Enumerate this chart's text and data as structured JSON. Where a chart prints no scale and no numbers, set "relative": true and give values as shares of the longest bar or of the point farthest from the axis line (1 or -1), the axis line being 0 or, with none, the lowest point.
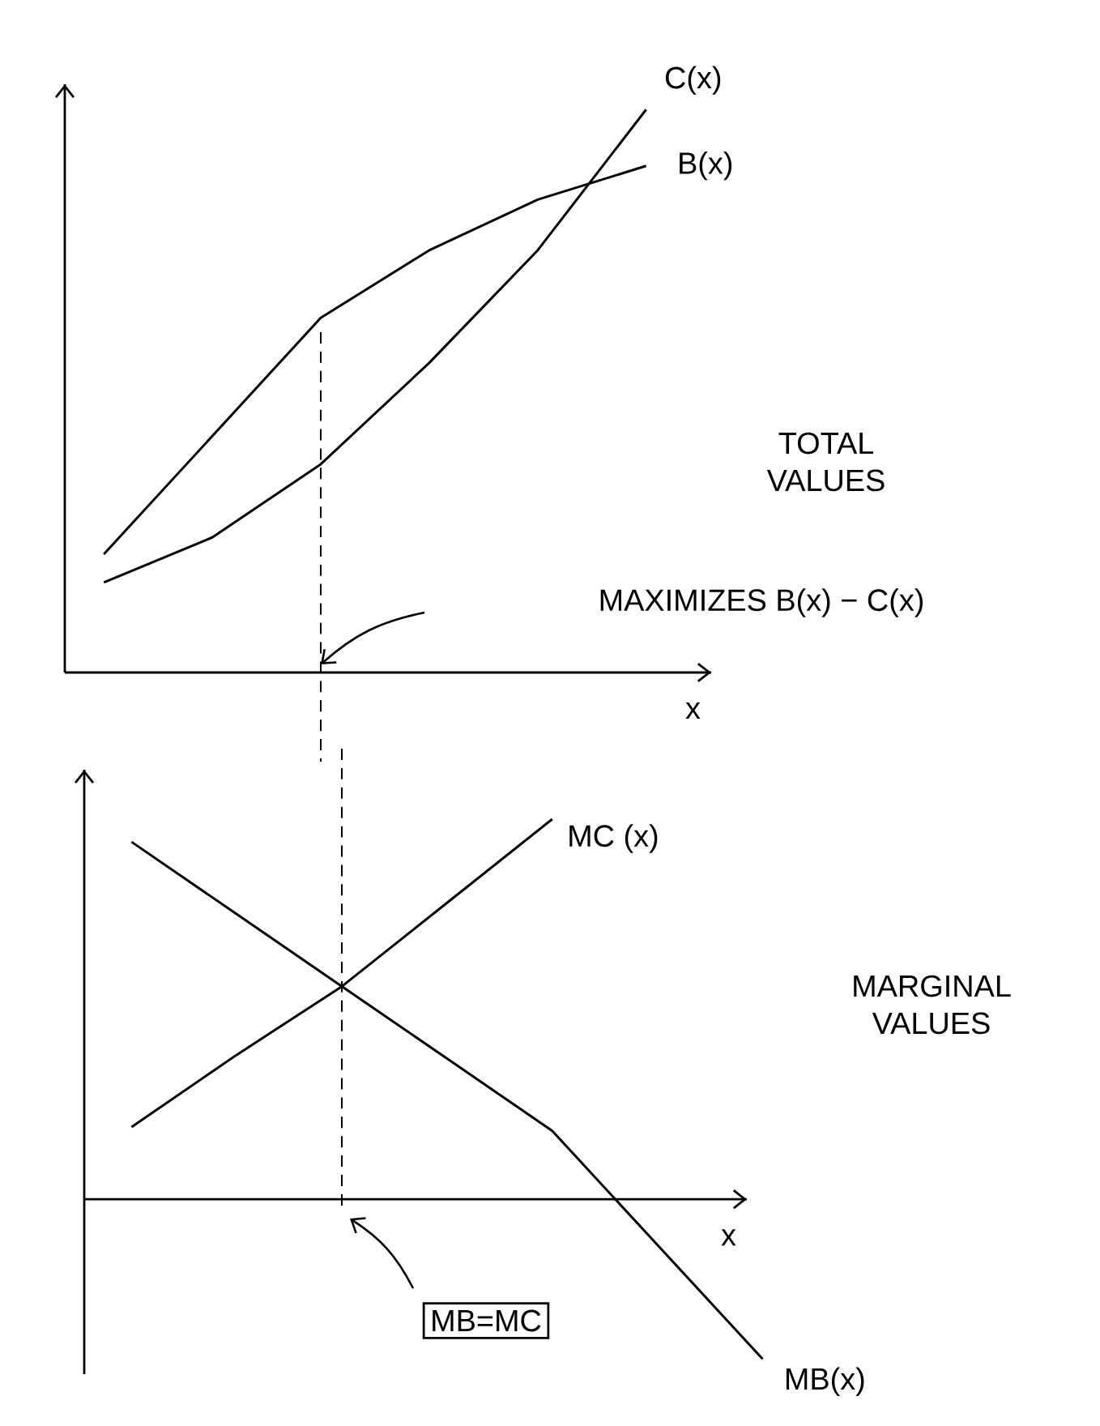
{
  "chart_data": [
    {
      "type": "line",
      "relative": true,
      "categories": [
        null,
        null,
        null,
        null,
        null,
        null
      ],
      "xlabel": "x",
      "series": [
        {
          "name": "C(x)",
          "color": "#000000",
          "values": [
            0.16,
            0.24,
            0.37,
            0.55,
            0.75,
            1.0
          ]
        },
        {
          "name": "B(x)",
          "color": "#000000",
          "values": [
            0.21,
            0.42,
            0.63,
            0.75,
            0.84,
            0.9
          ]
        }
      ],
      "annotations": [
        "TOTAL VALUES",
        "MAXIMIZES B(x) − C(x)"
      ]
    },
    {
      "type": "line",
      "relative": true,
      "categories": [
        null,
        null,
        null,
        null,
        null,
        null,
        null
      ],
      "xlabel": "x",
      "series": [
        {
          "name": "MC (x)",
          "color": "#000000",
          "values": [
            0.19,
            0.38,
            0.56,
            0.78,
            1.0,
            null,
            null
          ]
        },
        {
          "name": "MB(x)",
          "color": "#000000",
          "values": [
            0.94,
            0.75,
            0.56,
            0.37,
            0.18,
            -0.12,
            -0.42
          ]
        }
      ],
      "annotations": [
        "MARGINAL VALUES",
        "MB=MC"
      ]
    }
  ]
}
